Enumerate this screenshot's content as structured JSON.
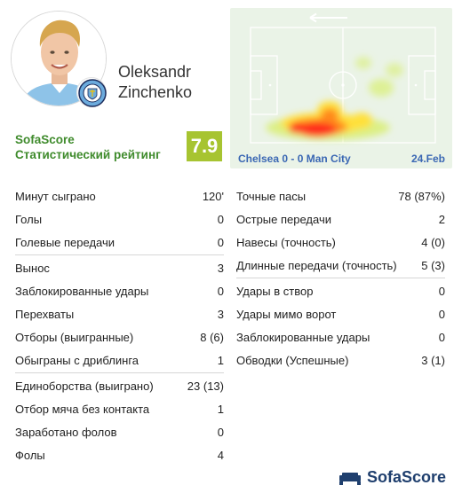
{
  "player": {
    "first_name": "Oleksandr",
    "last_name": "Zinchenko",
    "photo_icon": "player-photo",
    "club_badge_icon": "manchester-city-badge"
  },
  "rating": {
    "brand": "SofaScore",
    "label": "Статистический рейтинг",
    "value": "7.9",
    "color": "#a7c431"
  },
  "match": {
    "score": "Chelsea 0 - 0 Man City",
    "date": "24.Feb",
    "direction_icon": "arrow-left-icon"
  },
  "colors": {
    "brand_green": "#3f8b2c",
    "match_blue": "#3a67b3",
    "pitch": "#eaf3e7"
  },
  "stats_left": [
    [
      {
        "label": "Минут сыграно",
        "value": "120'"
      },
      {
        "label": "Голы",
        "value": "0"
      },
      {
        "label": "Голевые передачи",
        "value": "0"
      }
    ],
    [
      {
        "label": "Вынос",
        "value": "3"
      },
      {
        "label": "Заблокированные удары",
        "value": "0"
      },
      {
        "label": "Перехваты",
        "value": "3"
      },
      {
        "label": "Отборы (выигранные)",
        "value": "8 (6)"
      },
      {
        "label": "Обыграны с дриблинга",
        "value": "1"
      }
    ],
    [
      {
        "label": "Единоборства (выиграно)",
        "value": "23 (13)"
      },
      {
        "label": "Отбор мяча без контакта",
        "value": "1"
      },
      {
        "label": "Заработано фолов",
        "value": "0"
      },
      {
        "label": "Фолы",
        "value": "4"
      }
    ]
  ],
  "stats_right": [
    [
      {
        "label": "Точные пасы",
        "value": "78 (87%)"
      },
      {
        "label": "Острые передачи",
        "value": "2"
      },
      {
        "label": "Навесы (точность)",
        "value": "4 (0)"
      },
      {
        "label": "Длинные передачи (точность)",
        "value": "5 (3)"
      }
    ],
    [
      {
        "label": "Удары в створ",
        "value": "0"
      },
      {
        "label": "Удары мимо ворот",
        "value": "0"
      },
      {
        "label": "Заблокированные удары",
        "value": "0"
      },
      {
        "label": "Обводки (Успешные)",
        "value": "3 (1)"
      }
    ]
  ],
  "footer": {
    "logo_text": "SofaScore",
    "logo_icon": "sofascore-logo-icon"
  }
}
